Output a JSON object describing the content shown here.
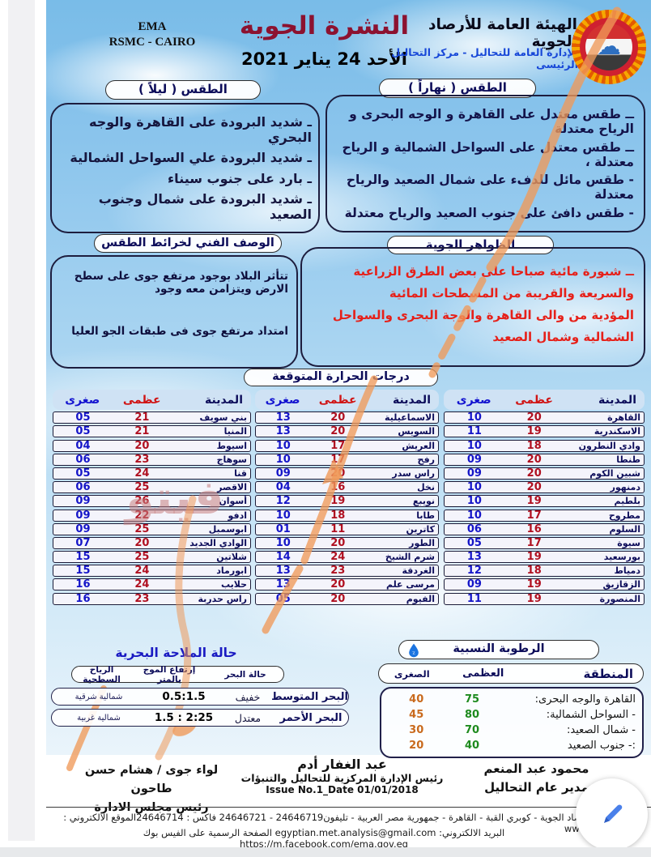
{
  "header": {
    "agency_en_line1": "EMA",
    "agency_en_line2": "RSMC - CAIRO",
    "bulletin_title": "النشرة الجوية",
    "bulletin_date": "الأحد 24 يناير 2021",
    "agency_ar": "الهيئة العامة للأرصاد الجوية",
    "department_ar": "الإدارة العامة للتحاليل - مركز التحاليل الرئيسى",
    "logo_icon": "ema-sun-cloud-logo"
  },
  "weather_night": {
    "title": "الطقس ( ليلاً )",
    "items": [
      "ـ شديد البرودة على القاهرة والوجه البحري",
      "ـ شديد البرودة علي السواحل الشمالية",
      "ـ بارد على جنوب سيناء",
      "ـ شديد البرودة على شمال وجنوب الصعيد"
    ]
  },
  "weather_day": {
    "title": "الطقس ( نهاراً )",
    "items": [
      "ــ طقس معتدل على القاهرة و الوجه البحرى و الرياح معتدلة",
      "ــ طقس معتدل على السواحل الشمالية و الرياح معتدلة ،",
      "- طقس مائل للدفء على شمال الصعيد والرياح معتدلة",
      "- طقس دافئ على جنوب الصعيد والرياح معتدلة"
    ]
  },
  "technical": {
    "title": "الوصف الفني لخرائط الطقس",
    "items": [
      "تتأثر البلاد بوجود مرتفع جوى على سطح الارض ويتزامن معه وجود",
      "امتداد مرتفع جوى فى طبقات الجو العليا"
    ]
  },
  "phenomena": {
    "title": "الظواهر الجوية",
    "items": [
      "ــ شبورة مائية صباحا على بعض الطرق الزراعية والسريعة والقريبة من المسطحات المائية",
      "المؤدية من والى القاهرة والوجة البحرى والسواحل الشمالية وشمال الصعيد"
    ]
  },
  "temperatures": {
    "title": "درجات الحرارة المتوقعة",
    "headers": {
      "city": "المدينة",
      "max": "عظمى",
      "min": "صغرى"
    },
    "tables": [
      {
        "rows": [
          {
            "city": "القاهرة",
            "max": "20",
            "min": "10"
          },
          {
            "city": "الاسكندرية",
            "max": "19",
            "min": "11"
          },
          {
            "city": "وادي النطرون",
            "max": "18",
            "min": "10"
          },
          {
            "city": "طنطا",
            "max": "20",
            "min": "09"
          },
          {
            "city": "شبين الكوم",
            "max": "20",
            "min": "09"
          },
          {
            "city": "دمنهور",
            "max": "20",
            "min": "10"
          },
          {
            "city": "بلطيم",
            "max": "19",
            "min": "10"
          },
          {
            "city": "مطروح",
            "max": "17",
            "min": "10"
          },
          {
            "city": "السلوم",
            "max": "16",
            "min": "06"
          },
          {
            "city": "سيوة",
            "max": "17",
            "min": "05"
          },
          {
            "city": "بورسعيد",
            "max": "19",
            "min": "13"
          },
          {
            "city": "دمياط",
            "max": "18",
            "min": "12"
          },
          {
            "city": "الزقازيق",
            "max": "19",
            "min": "09"
          },
          {
            "city": "المنصورة",
            "max": "19",
            "min": "11"
          }
        ]
      },
      {
        "rows": [
          {
            "city": "الاسماعيلية",
            "max": "20",
            "min": "13"
          },
          {
            "city": "السويس",
            "max": "20",
            "min": "13"
          },
          {
            "city": "العريش",
            "max": "17",
            "min": "10"
          },
          {
            "city": "رفح",
            "max": "17",
            "min": "10"
          },
          {
            "city": "راس سدر",
            "max": "20",
            "min": "09"
          },
          {
            "city": "نخل",
            "max": "16",
            "min": "04"
          },
          {
            "city": "نويبع",
            "max": "19",
            "min": "12"
          },
          {
            "city": "طابا",
            "max": "18",
            "min": "10"
          },
          {
            "city": "كاترين",
            "max": "11",
            "min": "01"
          },
          {
            "city": "الطور",
            "max": "20",
            "min": "10"
          },
          {
            "city": "شرم الشيخ",
            "max": "24",
            "min": "14"
          },
          {
            "city": "الغردقة",
            "max": "23",
            "min": "13"
          },
          {
            "city": "مرسى علم",
            "max": "20",
            "min": "13"
          },
          {
            "city": "الفيوم",
            "max": "20",
            "min": "05"
          }
        ]
      },
      {
        "rows": [
          {
            "city": "بني سويف",
            "max": "21",
            "min": "05"
          },
          {
            "city": "المنيا",
            "max": "21",
            "min": "05"
          },
          {
            "city": "اسيوط",
            "max": "20",
            "min": "04"
          },
          {
            "city": "سوهاج",
            "max": "23",
            "min": "06"
          },
          {
            "city": "قنا",
            "max": "24",
            "min": "05"
          },
          {
            "city": "الاقصر",
            "max": "25",
            "min": "06"
          },
          {
            "city": "أسوان",
            "max": "26",
            "min": "09"
          },
          {
            "city": "ادفو",
            "max": "22",
            "min": "09"
          },
          {
            "city": "ابوسمبل",
            "max": "25",
            "min": "09"
          },
          {
            "city": "الوادي الجديد",
            "max": "20",
            "min": "07"
          },
          {
            "city": "شلاتين",
            "max": "25",
            "min": "15"
          },
          {
            "city": "ابورماد",
            "max": "24",
            "min": "15"
          },
          {
            "city": "حلايب",
            "max": "24",
            "min": "16"
          },
          {
            "city": "راس حدربة",
            "max": "23",
            "min": "16"
          }
        ]
      }
    ]
  },
  "marine": {
    "title": "حالة الملاحة البحرية",
    "headers": {
      "state": "حالة البحر",
      "wave": "إرتفاع الموج بالمتر",
      "wind": "الرياح السطحية"
    },
    "rows": [
      {
        "sea": "البحر المتوسط",
        "state": "خفيف",
        "wave": "0.5:1.5",
        "wind": "شمالية شرقية"
      },
      {
        "sea": "البحر الأحمر",
        "state": "معتدل",
        "wave": "1.5 : 2:25",
        "wind": "شمالية غربية"
      }
    ]
  },
  "humidity": {
    "title": "الرطوبة النسبية",
    "drop_icon": "water-drop",
    "headers": {
      "region": "المنطقة",
      "max": "العظمى",
      "min": "الصغرى"
    },
    "rows": [
      {
        "region": "القاهرة والوجه البحرى:",
        "max": "75",
        "min": "40"
      },
      {
        "region": "- السواحل الشمالية:",
        "max": "80",
        "min": "45"
      },
      {
        "region": "- شمال الصعيد:",
        "max": "70",
        "min": "30"
      },
      {
        "region": ":- جنوب الصعيد",
        "max": "40",
        "min": "20"
      }
    ]
  },
  "signatures": {
    "right": {
      "name": "محمود عبد المنعم",
      "title": "مدير عام التحاليل"
    },
    "center": {
      "name": "عبد الغفار أدم",
      "title": "رئيس الإدارة المركزية للتحاليل والتنبؤات",
      "issue": "Issue No.1_Date 01/01/2018"
    },
    "left": {
      "name": "لواء جوى / هشام حسن طاحون",
      "title": "رئيس مجلس الادارة"
    }
  },
  "footer": {
    "line1": "الهيئة العامة للأرصاد الجوية - كوبري القبة - القاهرة - جمهورية مصر العربية - تليفون24646719 - 24646721 فاكس : 24646714الموقع الالكتروني : www.ema.gov.eg",
    "line2": "البريد الالكتروني: egyptian.met.analysis@gmail.com الصفحة الرسمية على الفيس بوك https://m.facebook.com/ema.gov.eg"
  },
  "watermark": "فيتو",
  "colors": {
    "title_red": "#8c1230",
    "navy": "#0d0d5a",
    "max_red": "#b01020",
    "min_blue": "#1515c8",
    "alert_red": "#e62019",
    "humidity_max_green": "#1d8a1d",
    "humidity_min_orange": "#c96a1d",
    "dept_blue": "#1848d8",
    "scribble_orange": "#f09a5a",
    "pencil_blue": "#4a80ea"
  }
}
